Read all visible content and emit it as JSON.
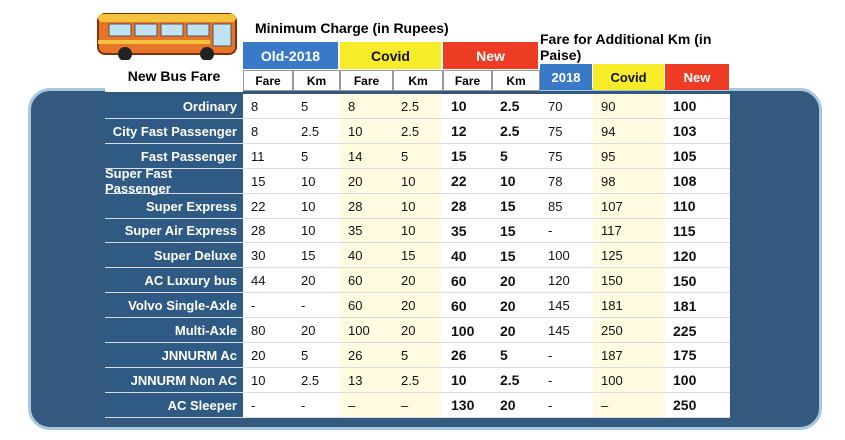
{
  "header": {
    "title": "New Bus Fare",
    "min_charge": "Minimum Charge (in Rupees)",
    "additional": "Fare for Additional Km (in Paise)",
    "groups": [
      "Old-2018",
      "Covid",
      "New"
    ],
    "subcols": [
      "Fare",
      "Km",
      "Fare",
      "Km",
      "Fare",
      "Km"
    ],
    "add_cols": [
      "2018",
      "Covid",
      "New"
    ]
  },
  "table": {
    "rows": [
      [
        "Ordinary",
        "8",
        "5",
        "8",
        "2.5",
        "10",
        "2.5",
        "70",
        "90",
        "100"
      ],
      [
        "City Fast Passenger",
        "8",
        "2.5",
        "10",
        "2.5",
        "12",
        "2.5",
        "75",
        "94",
        "103"
      ],
      [
        "Fast Passenger",
        "11",
        "5",
        "14",
        "5",
        "15",
        "5",
        "75",
        "95",
        "105"
      ],
      [
        "Super Fast Passenger",
        "15",
        "10",
        "20",
        "10",
        "22",
        "10",
        "78",
        "98",
        "108"
      ],
      [
        "Super Express",
        "22",
        "10",
        "28",
        "10",
        "28",
        "15",
        "85",
        "107",
        "110"
      ],
      [
        "Super Air Express",
        "28",
        "10",
        "35",
        "10",
        "35",
        "15",
        "-",
        "117",
        "115"
      ],
      [
        "Super Deluxe",
        "30",
        "15",
        "40",
        "15",
        "40",
        "15",
        "100",
        "125",
        "120"
      ],
      [
        "AC Luxury bus",
        "44",
        "20",
        "60",
        "20",
        "60",
        "20",
        "120",
        "150",
        "150"
      ],
      [
        "Volvo Single-Axle",
        "-",
        "-",
        "60",
        "20",
        "60",
        "20",
        "145",
        "181",
        "181"
      ],
      [
        "Multi-Axle",
        "80",
        "20",
        "100",
        "20",
        "100",
        "20",
        "145",
        "250",
        "225"
      ],
      [
        "JNNURM Ac",
        "20",
        "5",
        "26",
        "5",
        "26",
        "5",
        "-",
        "187",
        "175"
      ],
      [
        "JNNURM Non AC",
        "10",
        "2.5",
        "13",
        "2.5",
        "10",
        "2.5",
        "-",
        "100",
        "100"
      ],
      [
        "AC Sleeper",
        "-",
        "-",
        "–",
        "–",
        "130",
        "20",
        "-",
        "–",
        "250"
      ]
    ]
  }
}
